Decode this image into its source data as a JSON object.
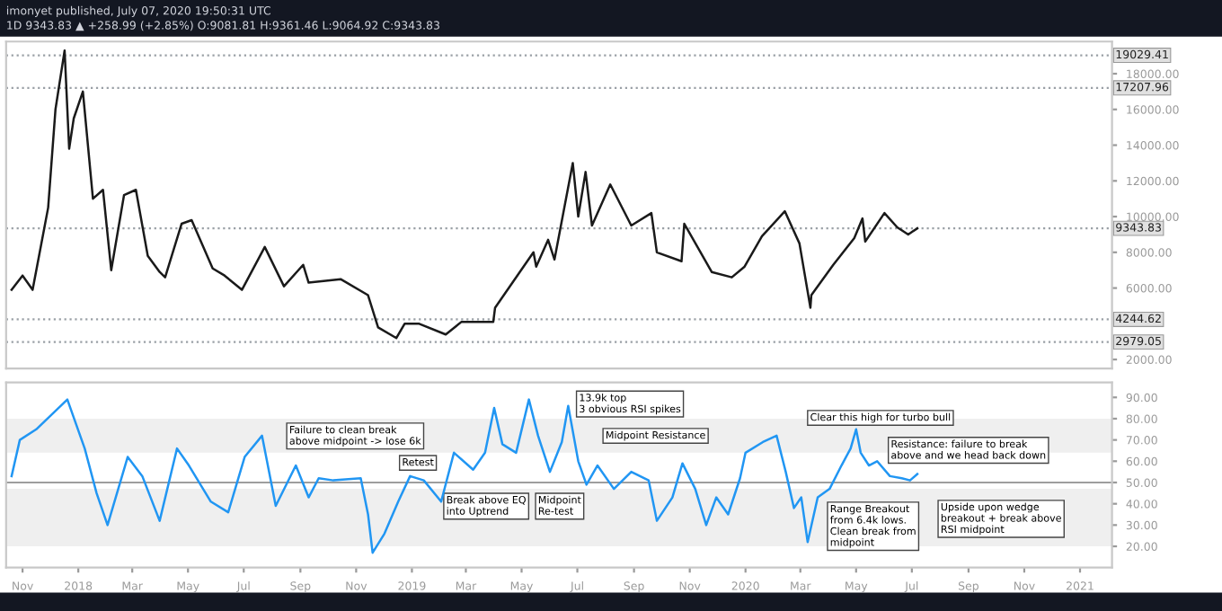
{
  "chart_data": [
    {
      "type": "line",
      "title": "imonyet published, July 07, 2020 19:50:31 UTC",
      "subtitle": "1D 9343.83 ▲ +258.99 (+2.85%) O:9081.81 H:9361.46 L:9064.92 C:9343.83",
      "x": [
        "2017-10-20",
        "2017-11-01",
        "2017-11-12",
        "2017-11-29",
        "2017-12-07",
        "2017-12-17",
        "2017-12-22",
        "2017-12-27",
        "2018-01-06",
        "2018-01-17",
        "2018-01-28",
        "2018-02-06",
        "2018-02-20",
        "2018-03-05",
        "2018-03-18",
        "2018-03-31",
        "2018-04-06",
        "2018-04-24",
        "2018-05-05",
        "2018-05-28",
        "2018-06-10",
        "2018-06-29",
        "2018-07-24",
        "2018-08-14",
        "2018-09-04",
        "2018-09-10",
        "2018-10-15",
        "2018-11-14",
        "2018-11-25",
        "2018-12-15",
        "2018-12-24",
        "2019-01-09",
        "2019-02-07",
        "2019-02-24",
        "2019-03-31",
        "2019-04-02",
        "2019-05-14",
        "2019-05-17",
        "2019-05-30",
        "2019-06-06",
        "2019-06-26",
        "2019-07-02",
        "2019-07-10",
        "2019-07-17",
        "2019-08-06",
        "2019-08-29",
        "2019-09-20",
        "2019-09-26",
        "2019-10-23",
        "2019-10-26",
        "2019-11-25",
        "2019-12-17",
        "2019-12-31",
        "2020-01-19",
        "2020-02-13",
        "2020-02-29",
        "2020-03-12",
        "2020-03-13",
        "2020-04-06",
        "2020-04-29",
        "2020-05-08",
        "2020-05-11",
        "2020-06-01",
        "2020-06-15",
        "2020-06-27",
        "2020-07-07"
      ],
      "series": [
        {
          "color": "#1a1a1a",
          "values": [
            5900,
            6700,
            5900,
            10500,
            16000,
            19300,
            13800,
            15500,
            17000,
            11000,
            11500,
            7000,
            11200,
            11500,
            7800,
            6900,
            6600,
            9600,
            9800,
            7100,
            6700,
            5900,
            8300,
            6100,
            7300,
            6300,
            6500,
            5600,
            3800,
            3200,
            4000,
            4000,
            3400,
            4100,
            4100,
            4900,
            8000,
            7200,
            8700,
            7600,
            13000,
            10000,
            12500,
            9500,
            11800,
            9500,
            10200,
            8000,
            7500,
            9600,
            6900,
            6600,
            7200,
            8900,
            10300,
            8500,
            4900,
            5600,
            7300,
            8800,
            9900,
            8600,
            10200,
            9400,
            9000,
            9343.83
          ]
        }
      ],
      "xlim": [
        "2017-10-14",
        "2021-02-05"
      ],
      "ylim": [
        1500,
        19800
      ],
      "yticks": [
        {
          "value": 2000,
          "label": "2000.00"
        },
        {
          "value": 6000,
          "label": "6000.00"
        },
        {
          "value": 8000,
          "label": "8000.00"
        },
        {
          "value": 10000,
          "label": "10000.00"
        },
        {
          "value": 12000,
          "label": "12000.00"
        },
        {
          "value": 14000,
          "label": "14000.00"
        },
        {
          "value": 16000,
          "label": "16000.00"
        },
        {
          "value": 18000,
          "label": "18000.00"
        }
      ],
      "ref_lines": [
        {
          "axis": "y",
          "value": 19029.41,
          "label": "19029.41",
          "color": "#9aa0a6",
          "line_style": "dotted"
        },
        {
          "axis": "y",
          "value": 17207.96,
          "label": "17207.96",
          "color": "#9aa0a6",
          "line_style": "dotted"
        },
        {
          "axis": "y",
          "value": 9343.83,
          "label": "9343.83",
          "color": "#9aa0a6",
          "line_style": "dotted"
        },
        {
          "axis": "y",
          "value": 4244.62,
          "label": "4244.62",
          "color": "#9aa0a6",
          "line_style": "dotted"
        },
        {
          "axis": "y",
          "value": 2979.05,
          "label": "2979.05",
          "color": "#9aa0a6",
          "line_style": "dotted"
        }
      ],
      "tick_labels": "y",
      "grid": false
    },
    {
      "type": "line",
      "x": [
        "2017-10-20",
        "2017-10-29",
        "2017-11-16",
        "2017-12-20",
        "2018-01-08",
        "2018-01-21",
        "2018-02-02",
        "2018-02-24",
        "2018-03-12",
        "2018-03-31",
        "2018-04-19",
        "2018-05-02",
        "2018-05-26",
        "2018-06-14",
        "2018-07-02",
        "2018-07-21",
        "2018-08-05",
        "2018-08-27",
        "2018-09-10",
        "2018-09-21",
        "2018-10-07",
        "2018-11-06",
        "2018-11-14",
        "2018-11-19",
        "2018-12-02",
        "2018-12-17",
        "2018-12-30",
        "2019-01-14",
        "2019-02-02",
        "2019-02-16",
        "2019-03-09",
        "2019-03-22",
        "2019-04-01",
        "2019-04-10",
        "2019-04-25",
        "2019-05-09",
        "2019-05-19",
        "2019-06-01",
        "2019-06-14",
        "2019-06-21",
        "2019-07-02",
        "2019-07-11",
        "2019-07-23",
        "2019-08-10",
        "2019-08-29",
        "2019-09-17",
        "2019-09-26",
        "2019-10-13",
        "2019-10-24",
        "2019-11-07",
        "2019-11-19",
        "2019-11-30",
        "2019-12-13",
        "2019-12-26",
        "2020-01-01",
        "2020-01-20",
        "2020-02-04",
        "2020-02-14",
        "2020-02-23",
        "2020-03-02",
        "2020-03-09",
        "2020-03-20",
        "2020-04-02",
        "2020-04-15",
        "2020-04-25",
        "2020-05-01",
        "2020-05-06",
        "2020-05-15",
        "2020-05-24",
        "2020-06-07",
        "2020-06-20",
        "2020-06-29",
        "2020-07-07"
      ],
      "series": [
        {
          "color": "#2196f3",
          "values": [
            53,
            70,
            75,
            89,
            66,
            45,
            30,
            62,
            53,
            32,
            66,
            58,
            41,
            36,
            62,
            72,
            39,
            58,
            43,
            52,
            51,
            52,
            35,
            17,
            26,
            41,
            53,
            51,
            41,
            64,
            56,
            64,
            85,
            68,
            64,
            89,
            72,
            55,
            69,
            86,
            60,
            49,
            58,
            47,
            55,
            51,
            32,
            43,
            59,
            47,
            30,
            43,
            35,
            52,
            64,
            69,
            72,
            55,
            38,
            43,
            22,
            43,
            47,
            58,
            66,
            75,
            64,
            58,
            60,
            53,
            52,
            51,
            54
          ]
        }
      ],
      "xlim": [
        "2017-10-14",
        "2021-02-05"
      ],
      "ylim": [
        10,
        97
      ],
      "yticks": [
        {
          "value": 20,
          "label": "20.00"
        },
        {
          "value": 30,
          "label": "30.00"
        },
        {
          "value": 40,
          "label": "40.00"
        },
        {
          "value": 50,
          "label": "50.00"
        },
        {
          "value": 60,
          "label": "60.00"
        },
        {
          "value": 70,
          "label": "70.00"
        },
        {
          "value": 80,
          "label": "80.00"
        },
        {
          "value": 90,
          "label": "90.00"
        }
      ],
      "xticks": [
        {
          "value": "2017-11-01",
          "label": "Nov"
        },
        {
          "value": "2018-01-01",
          "label": "2018"
        },
        {
          "value": "2018-03-01",
          "label": "Mar"
        },
        {
          "value": "2018-05-01",
          "label": "May"
        },
        {
          "value": "2018-07-01",
          "label": "Jul"
        },
        {
          "value": "2018-09-01",
          "label": "Sep"
        },
        {
          "value": "2018-11-01",
          "label": "Nov"
        },
        {
          "value": "2019-01-01",
          "label": "2019"
        },
        {
          "value": "2019-03-01",
          "label": "Mar"
        },
        {
          "value": "2019-05-01",
          "label": "May"
        },
        {
          "value": "2019-07-01",
          "label": "Jul"
        },
        {
          "value": "2019-09-01",
          "label": "Sep"
        },
        {
          "value": "2019-11-01",
          "label": "Nov"
        },
        {
          "value": "2020-01-01",
          "label": "2020"
        },
        {
          "value": "2020-03-01",
          "label": "Mar"
        },
        {
          "value": "2020-05-01",
          "label": "May"
        },
        {
          "value": "2020-07-01",
          "label": "Jul"
        },
        {
          "value": "2020-09-01",
          "label": "Sep"
        },
        {
          "value": "2020-11-01",
          "label": "Nov"
        },
        {
          "value": "2021-01-01",
          "label": "2021"
        }
      ],
      "bands": [
        {
          "axis": "y",
          "from": 64,
          "to": 80,
          "color": "#efefef"
        },
        {
          "axis": "y",
          "from": 20,
          "to": 47,
          "color": "#efefef"
        }
      ],
      "ref_lines": [
        {
          "axis": "y",
          "value": 50,
          "color": "#9e9e9e",
          "line_style": "solid"
        }
      ],
      "annotations": [
        "Failure to clean break\nabove midpoint -> lose 6k",
        "Retest",
        "Break above EQ\ninto Uptrend",
        "Midpoint\nRe-test",
        "13.9k top\n3 obvious RSI spikes",
        "Midpoint Resistance",
        "Range Breakout\nfrom 6.4k lows.\nClean break from\nmidpoint",
        "Clear this high for turbo bull",
        "Resistance: failure to break\nabove and we head back down",
        "Upside upon wedge\nbreakout + break above\nRSI midpoint"
      ],
      "grid": false
    }
  ]
}
